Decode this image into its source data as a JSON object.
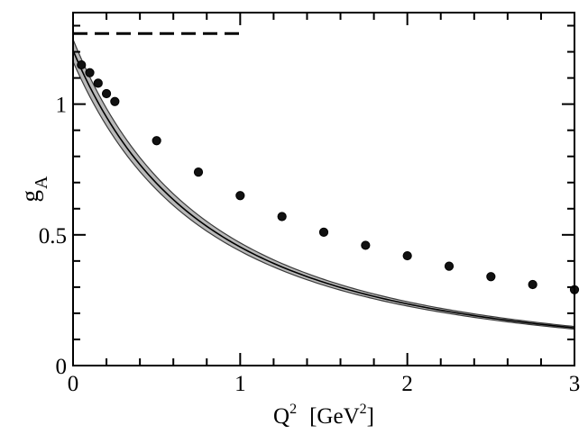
{
  "chart_data": {
    "type": "scatter",
    "title": "",
    "xlabel": "Q",
    "xlabel_sup": "2",
    "xlabel_unit_open": "[GeV",
    "xlabel_unit_sup": "2",
    "xlabel_unit_close": "]",
    "ylabel": "g",
    "ylabel_sub": "A",
    "xlim": [
      0,
      3
    ],
    "ylim": [
      0,
      1.35
    ],
    "x_ticks": [
      0,
      1,
      2,
      3
    ],
    "y_ticks": [
      0,
      0.5,
      1
    ],
    "x_tick_labels": [
      "0",
      "1",
      "2",
      "3"
    ],
    "y_tick_labels": [
      "0",
      "0.5",
      "1"
    ],
    "x_minor_step": 0.2,
    "y_minor_step": 0.1,
    "series": [
      {
        "name": "data points",
        "kind": "markers",
        "x": [
          0.05,
          0.1,
          0.15,
          0.2,
          0.25,
          0.5,
          0.75,
          1.0,
          1.25,
          1.5,
          1.75,
          2.0,
          2.25,
          2.5,
          2.75,
          3.0
        ],
        "y": [
          1.15,
          1.12,
          1.08,
          1.04,
          1.01,
          0.86,
          0.74,
          0.65,
          0.57,
          0.51,
          0.46,
          0.42,
          0.38,
          0.34,
          0.31,
          0.29
        ]
      },
      {
        "name": "dipole fit",
        "kind": "curve",
        "g0": 1.205,
        "mass": 1.26,
        "band_rel": 0.035,
        "x_range": [
          0,
          3
        ]
      },
      {
        "name": "physical value",
        "kind": "dashed",
        "x": [
          0,
          1
        ],
        "y": [
          1.27,
          1.27
        ]
      }
    ]
  }
}
